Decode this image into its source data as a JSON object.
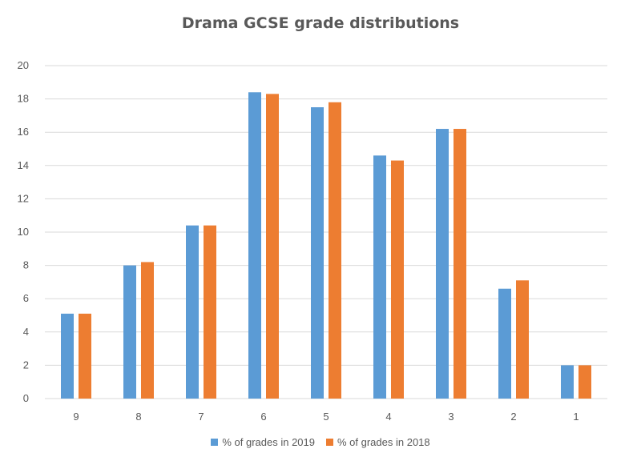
{
  "chart_data": {
    "type": "bar",
    "title": "Drama GCSE grade distributions",
    "xlabel": "",
    "ylabel": "",
    "categories": [
      "9",
      "8",
      "7",
      "6",
      "5",
      "4",
      "3",
      "2",
      "1"
    ],
    "series": [
      {
        "name": "% of grades in 2019",
        "color": "#5b9bd5",
        "values": [
          5.1,
          8.0,
          10.4,
          18.4,
          17.5,
          14.6,
          16.2,
          6.6,
          2.0
        ]
      },
      {
        "name": "% of grades in 2018",
        "color": "#ed7d31",
        "values": [
          5.1,
          8.2,
          10.4,
          18.3,
          17.8,
          14.3,
          16.2,
          7.1,
          2.0
        ]
      }
    ],
    "ylim": [
      0,
      20
    ],
    "yticks": [
      0,
      2,
      4,
      6,
      8,
      10,
      12,
      14,
      16,
      18,
      20
    ],
    "grid": true,
    "legend_position": "bottom"
  }
}
